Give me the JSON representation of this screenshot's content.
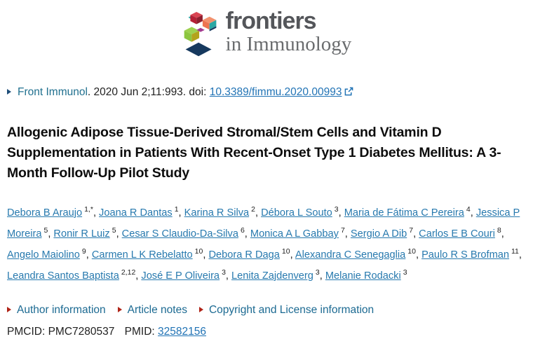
{
  "logo": {
    "brand": "frontiers",
    "journal": "in Immunology"
  },
  "citation": {
    "journal": "Front Immunol",
    "rest": ". 2020 Jun 2;11:993. doi: ",
    "doi": "10.3389/fimmu.2020.00993"
  },
  "title": "Allogenic Adipose Tissue-Derived Stromal/Stem Cells and Vitamin D Supplementation in Patients With Recent-Onset Type 1 Diabetes Mellitus: A 3-Month Follow-Up Pilot Study",
  "authors": [
    {
      "name": "Debora B Araujo",
      "sup": "1,*"
    },
    {
      "name": "Joana R Dantas",
      "sup": "1"
    },
    {
      "name": "Karina R Silva",
      "sup": "2"
    },
    {
      "name": "Débora L Souto",
      "sup": "3"
    },
    {
      "name": "Maria de Fátima C Pereira",
      "sup": "4"
    },
    {
      "name": "Jessica P Moreira",
      "sup": "5"
    },
    {
      "name": "Ronir R Luiz",
      "sup": "5"
    },
    {
      "name": "Cesar S Claudio-Da-Silva",
      "sup": "6"
    },
    {
      "name": "Monica A L Gabbay",
      "sup": "7"
    },
    {
      "name": "Sergio A Dib",
      "sup": "7"
    },
    {
      "name": "Carlos E B Couri",
      "sup": "8"
    },
    {
      "name": "Angelo Maiolino",
      "sup": "9"
    },
    {
      "name": "Carmen L K Rebelatto",
      "sup": "10"
    },
    {
      "name": "Debora R Daga",
      "sup": "10"
    },
    {
      "name": "Alexandra C Senegaglia",
      "sup": "10"
    },
    {
      "name": "Paulo R S Brofman",
      "sup": "11"
    },
    {
      "name": "Leandra Santos Baptista",
      "sup": "2,12"
    },
    {
      "name": "José E P Oliveira",
      "sup": "3"
    },
    {
      "name": "Lenita Zajdenverg",
      "sup": "3"
    },
    {
      "name": "Melanie Rodacki",
      "sup": "3"
    }
  ],
  "meta_links": [
    {
      "label": "Author information"
    },
    {
      "label": "Article notes"
    },
    {
      "label": "Copyright and License information"
    }
  ],
  "ids": {
    "pmcid_label": "PMCID:",
    "pmcid": "PMC7280537",
    "pmid_label": "PMID:",
    "pmid": "32582156"
  },
  "colors": {
    "journal_link": "#20708f",
    "doi_link": "#2173b5",
    "author_link": "#2779ae",
    "meta_link": "#1c6a92",
    "meta_arrow_red": "#b02418",
    "citation_arrow_navy": "#1f4e79",
    "title_text": "#0d0d0d",
    "logo_brand_gray": "#54565a",
    "logo_journal_gray": "#6a6c6e",
    "logo_cube_red": "#c22035",
    "logo_cube_orange": "#f08f6e",
    "logo_cube_teal": "#2aa7a4",
    "logo_cube_green": "#8dc63f",
    "logo_cube_olive": "#b3a31c",
    "logo_cube_navy": "#16395e",
    "logo_cube_magenta": "#a23a8e"
  }
}
